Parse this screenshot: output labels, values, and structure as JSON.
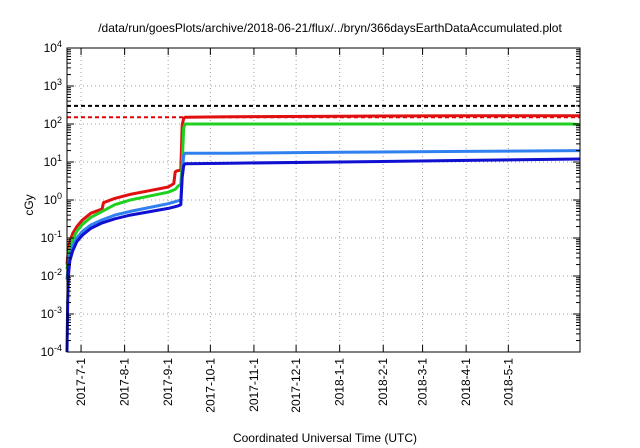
{
  "chart_data": {
    "type": "line",
    "title": "/data/run/goesPlots/archive/2018-06-21/flux/../bryn/366daysEarthDataAccumulated.plot",
    "xlabel": "Coordinated Universal Time (UTC)",
    "ylabel": "cGy",
    "y_scale": "log",
    "ylim": [
      0.0001,
      10000
    ],
    "xlim": [
      "2017-06-21",
      "2018-06-21"
    ],
    "grid": true,
    "legend": "none",
    "x_ticks": [
      "2017-7-1",
      "2017-8-1",
      "2017-9-1",
      "2017-10-1",
      "2017-11-1",
      "2017-12-1",
      "2018-1-1",
      "2018-2-1",
      "2018-3-1",
      "2018-4-1",
      "2018-5-1"
    ],
    "y_ticks": [
      {
        "value": 0.0001,
        "base": "10",
        "exp": "-4"
      },
      {
        "value": 0.001,
        "base": "10",
        "exp": "-3"
      },
      {
        "value": 0.01,
        "base": "10",
        "exp": "-2"
      },
      {
        "value": 0.1,
        "base": "10",
        "exp": "-1"
      },
      {
        "value": 1,
        "base": "10",
        "exp": "0"
      },
      {
        "value": 10,
        "base": "10",
        "exp": "1"
      },
      {
        "value": 100,
        "base": "10",
        "exp": "2"
      },
      {
        "value": 1000,
        "base": "10",
        "exp": "3"
      },
      {
        "value": 10000,
        "base": "10",
        "exp": "4"
      }
    ],
    "reference_lines": [
      {
        "value": 300,
        "color": "#000000",
        "style": "dashed"
      },
      {
        "value": 150,
        "color": "#e00000",
        "style": "dashed"
      }
    ],
    "series": [
      {
        "color": "#e01010",
        "x": [
          "2017-06-21",
          "2017-06-22",
          "2017-06-23",
          "2017-06-25",
          "2017-06-28",
          "2017-07-02",
          "2017-07-08",
          "2017-07-16",
          "2017-07-17",
          "2017-07-25",
          "2017-08-05",
          "2017-08-20",
          "2017-09-01",
          "2017-09-05",
          "2017-09-06",
          "2017-09-07",
          "2017-09-09",
          "2017-09-10",
          "2017-09-11",
          "2017-09-12",
          "2017-09-13",
          "2017-10-15",
          "2018-01-01",
          "2018-04-01",
          "2018-06-21"
        ],
        "y": [
          0.02,
          0.05,
          0.08,
          0.13,
          0.2,
          0.3,
          0.45,
          0.58,
          0.85,
          1.1,
          1.4,
          1.8,
          2.2,
          2.7,
          5.5,
          5.8,
          6.0,
          6.2,
          95,
          140,
          150,
          155,
          160,
          165,
          165
        ]
      },
      {
        "color": "#20d020",
        "x": [
          "2017-06-21",
          "2017-06-22",
          "2017-06-23",
          "2017-06-25",
          "2017-06-28",
          "2017-07-02",
          "2017-07-08",
          "2017-07-16",
          "2017-07-25",
          "2017-08-05",
          "2017-08-20",
          "2017-09-01",
          "2017-09-06",
          "2017-09-08",
          "2017-09-10",
          "2017-09-11",
          "2017-09-12",
          "2017-09-13",
          "2017-10-15",
          "2018-01-01",
          "2018-04-01",
          "2018-06-15",
          "2018-06-21"
        ],
        "y": [
          0.015,
          0.03,
          0.05,
          0.09,
          0.15,
          0.23,
          0.35,
          0.5,
          0.75,
          1.0,
          1.3,
          1.6,
          1.9,
          2.3,
          2.6,
          9,
          80,
          100,
          100,
          100,
          100,
          100,
          95
        ]
      },
      {
        "color": "#3080f0",
        "x": [
          "2017-06-21",
          "2017-06-22",
          "2017-06-23",
          "2017-06-25",
          "2017-06-28",
          "2017-07-02",
          "2017-07-08",
          "2017-07-16",
          "2017-07-25",
          "2017-08-05",
          "2017-08-20",
          "2017-09-01",
          "2017-09-08",
          "2017-09-10",
          "2017-09-11",
          "2017-09-12",
          "2017-09-13",
          "2017-10-15",
          "2018-01-01",
          "2018-04-01",
          "2018-06-21"
        ],
        "y": [
          0.008,
          0.02,
          0.035,
          0.06,
          0.1,
          0.15,
          0.22,
          0.3,
          0.4,
          0.5,
          0.65,
          0.8,
          0.95,
          1.0,
          5,
          15,
          17,
          17,
          18,
          19,
          20
        ]
      },
      {
        "color": "#1010d0",
        "x": [
          "2017-06-21",
          "2017-06-21T12",
          "2017-06-22",
          "2017-06-23",
          "2017-06-25",
          "2017-06-28",
          "2017-07-02",
          "2017-07-08",
          "2017-07-16",
          "2017-07-25",
          "2017-08-05",
          "2017-08-20",
          "2017-09-01",
          "2017-09-08",
          "2017-09-10",
          "2017-09-11",
          "2017-09-12",
          "2017-09-13",
          "2017-10-15",
          "2018-01-01",
          "2018-04-01",
          "2018-06-21"
        ],
        "y": [
          0.0001,
          0.002,
          0.01,
          0.025,
          0.045,
          0.08,
          0.12,
          0.18,
          0.25,
          0.32,
          0.4,
          0.5,
          0.6,
          0.7,
          0.75,
          4,
          8,
          9,
          9.3,
          10,
          11,
          12
        ]
      }
    ]
  }
}
